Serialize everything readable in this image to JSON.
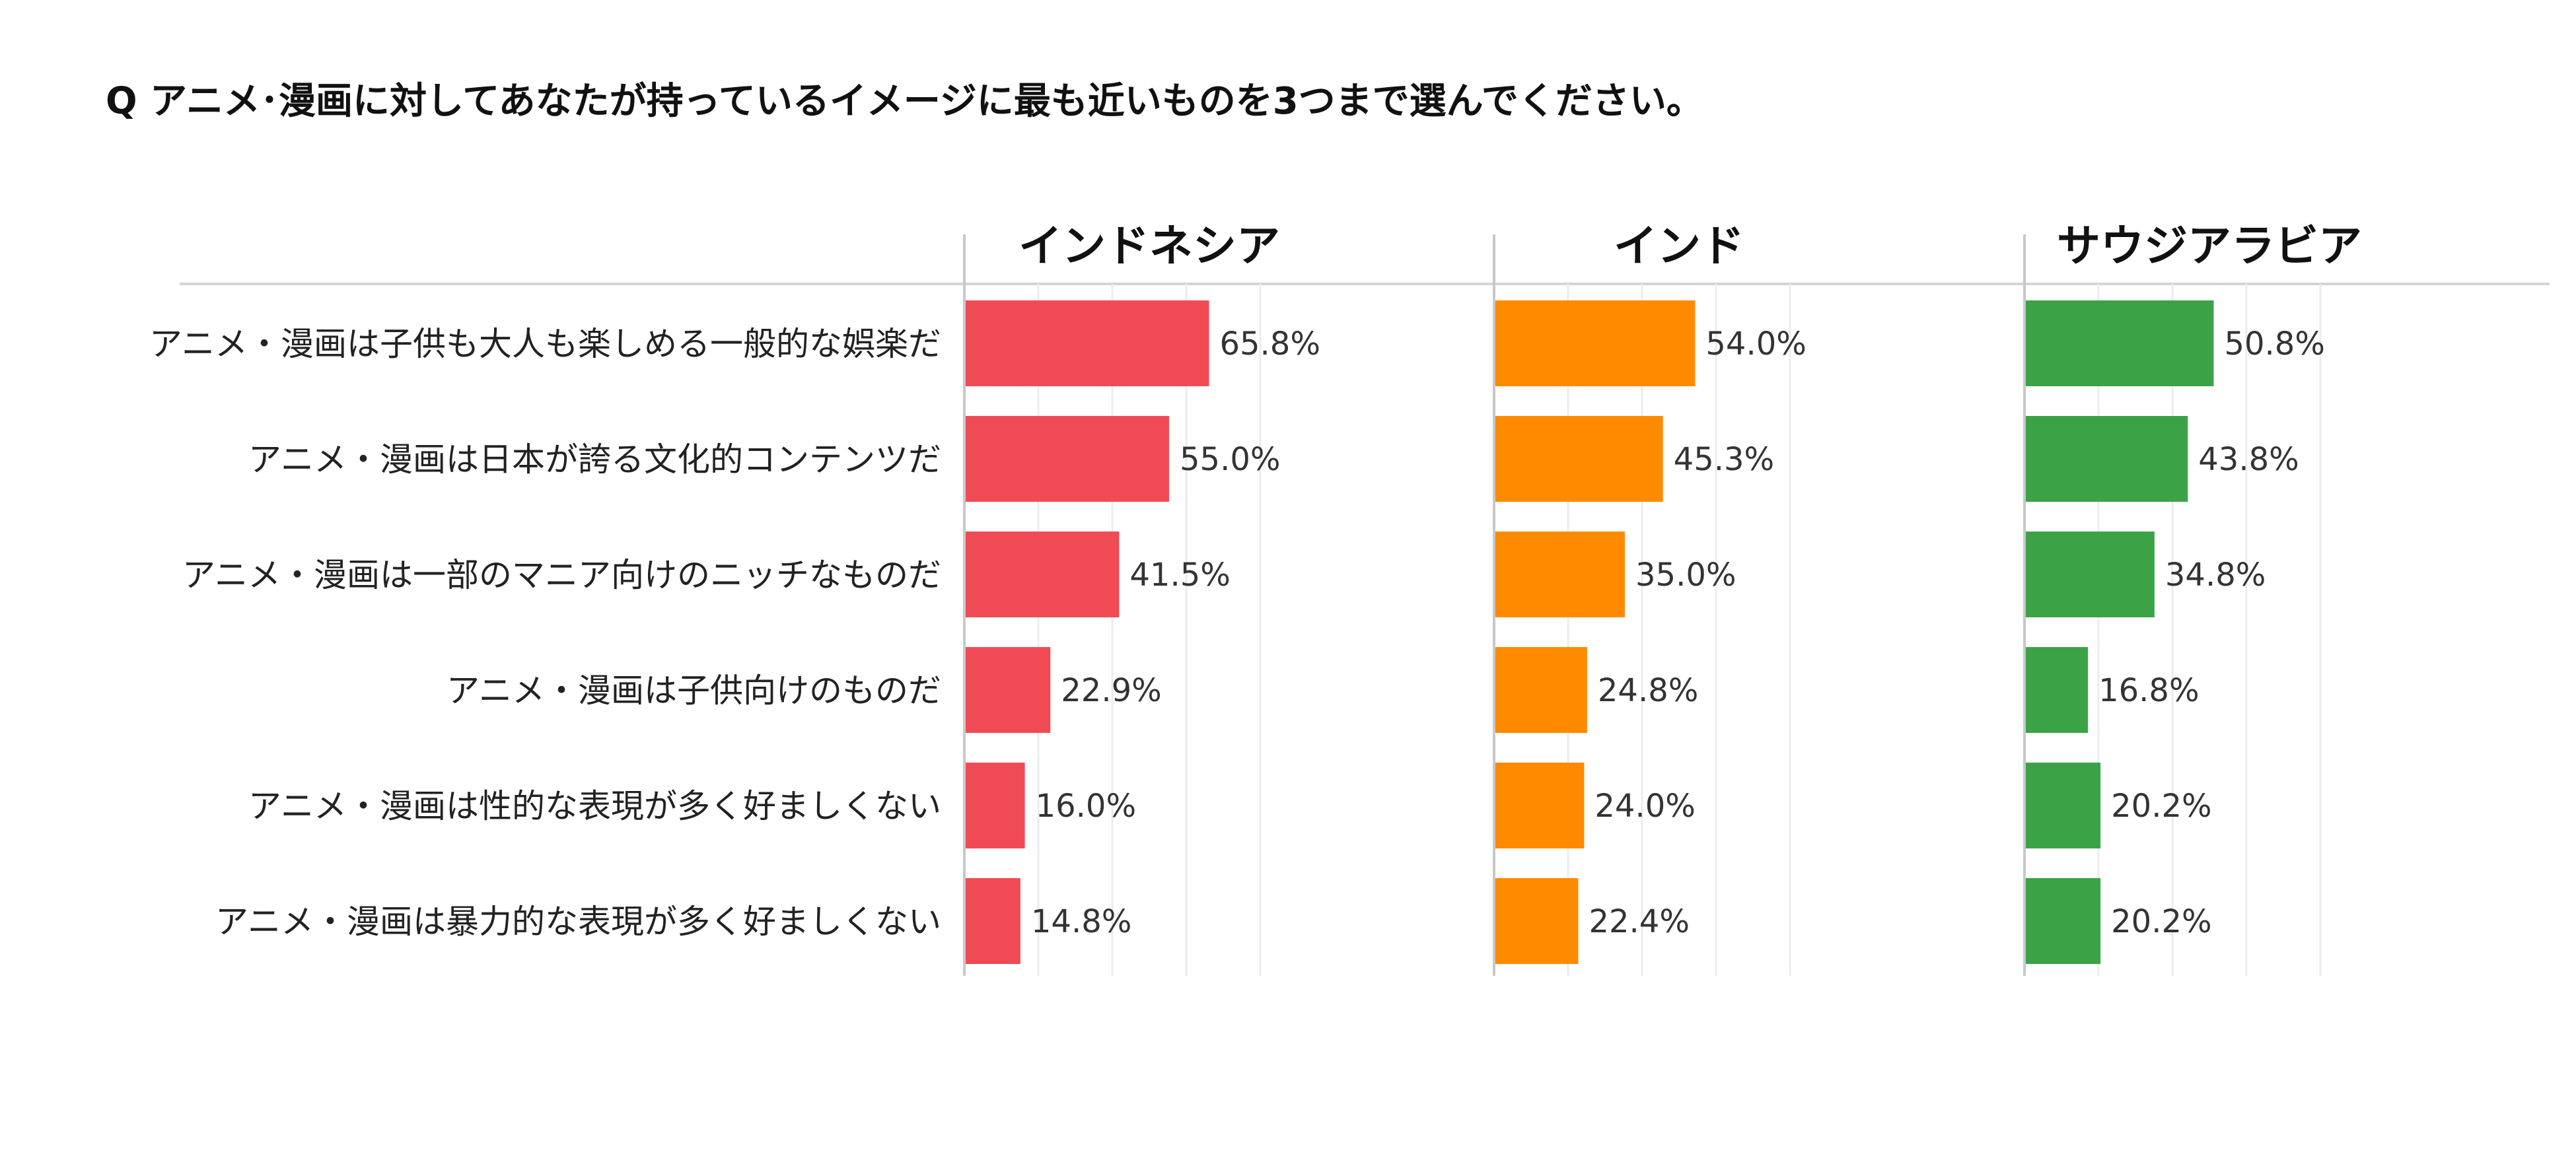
{
  "question": "Q アニメ･漫画に対してあなたが持っているイメージに最も近いものを3つまで選んでください。",
  "chart_data": [
    {
      "type": "bar",
      "orientation": "horizontal",
      "title": "インドネシア",
      "color": "#F04B55",
      "xlim": [
        0,
        100
      ],
      "grid": true,
      "categories": [
        "アニメ・漫画は子供も大人も楽しめる一般的な娯楽だ",
        "アニメ・漫画は日本が誇る文化的コンテンツだ",
        "アニメ・漫画は一部のマニア向けのニッチなものだ",
        "アニメ・漫画は子供向けのものだ",
        "アニメ・漫画は性的な表現が多く好ましくない",
        "アニメ・漫画は暴力的な表現が多く好ましくない"
      ],
      "values": [
        65.8,
        55.0,
        41.5,
        22.9,
        16.0,
        14.8
      ],
      "value_labels": [
        "65.8%",
        "55.0%",
        "41.5%",
        "22.9%",
        "16.0%",
        "14.8%"
      ]
    },
    {
      "type": "bar",
      "orientation": "horizontal",
      "title": "インド",
      "color": "#FF8A00",
      "xlim": [
        0,
        100
      ],
      "grid": true,
      "categories": [
        "アニメ・漫画は子供も大人も楽しめる一般的な娯楽だ",
        "アニメ・漫画は日本が誇る文化的コンテンツだ",
        "アニメ・漫画は一部のマニア向けのニッチなものだ",
        "アニメ・漫画は子供向けのものだ",
        "アニメ・漫画は性的な表現が多く好ましくない",
        "アニメ・漫画は暴力的な表現が多く好ましくない"
      ],
      "values": [
        54.0,
        45.3,
        35.0,
        24.8,
        24.0,
        22.4
      ],
      "value_labels": [
        "54.0%",
        "45.3%",
        "35.0%",
        "24.8%",
        "24.0%",
        "22.4%"
      ]
    },
    {
      "type": "bar",
      "orientation": "horizontal",
      "title": "サウジアラビア",
      "color": "#3BA345",
      "xlim": [
        0,
        100
      ],
      "grid": true,
      "categories": [
        "アニメ・漫画は子供も大人も楽しめる一般的な娯楽だ",
        "アニメ・漫画は日本が誇る文化的コンテンツだ",
        "アニメ・漫画は一部のマニア向けのニッチなものだ",
        "アニメ・漫画は子供向けのものだ",
        "アニメ・漫画は性的な表現が多く好ましくない",
        "アニメ・漫画は暴力的な表現が多く好ましくない"
      ],
      "values": [
        50.8,
        43.8,
        34.8,
        16.8,
        20.2,
        20.2
      ],
      "value_labels": [
        "50.8%",
        "43.8%",
        "34.8%",
        "16.8%",
        "20.2%",
        "20.2%"
      ]
    }
  ]
}
